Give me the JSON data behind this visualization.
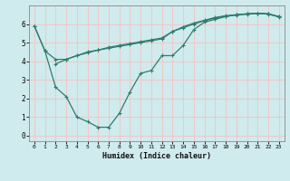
{
  "line1_x": [
    0,
    1,
    2,
    3,
    4,
    5,
    6,
    7,
    8,
    9,
    10,
    11,
    12,
    13,
    14,
    15,
    16,
    17,
    18,
    19,
    20,
    21,
    22,
    23
  ],
  "line1_y": [
    5.9,
    4.55,
    4.1,
    4.1,
    4.3,
    4.45,
    4.6,
    4.7,
    4.8,
    4.9,
    5.0,
    5.1,
    5.2,
    5.6,
    5.85,
    6.05,
    6.2,
    6.35,
    6.45,
    6.5,
    6.55,
    6.58,
    6.55,
    6.4
  ],
  "line2_x": [
    2,
    3,
    4,
    5,
    6,
    7,
    8,
    9,
    10,
    11,
    12,
    13,
    14,
    15,
    16,
    17,
    18,
    19,
    20,
    21,
    22,
    23
  ],
  "line2_y": [
    3.85,
    4.1,
    4.3,
    4.5,
    4.6,
    4.75,
    4.85,
    4.95,
    5.05,
    5.15,
    5.25,
    5.6,
    5.8,
    6.0,
    6.18,
    6.32,
    6.42,
    6.48,
    6.53,
    6.57,
    6.53,
    6.38
  ],
  "line3_x": [
    0,
    1,
    2,
    3,
    4,
    5,
    6,
    7,
    8,
    9,
    10,
    11,
    12,
    13,
    14,
    15,
    16,
    17,
    18,
    19,
    20,
    21,
    22,
    23
  ],
  "line3_y": [
    5.9,
    4.55,
    2.6,
    2.1,
    1.0,
    0.75,
    0.45,
    0.45,
    1.2,
    2.35,
    3.35,
    3.5,
    4.3,
    4.3,
    4.85,
    5.7,
    6.1,
    6.25,
    6.4,
    6.5,
    6.55,
    6.58,
    6.55,
    6.4
  ],
  "color": "#2E7D6E",
  "bg_color": "#D0EBEE",
  "grid_color": "#F0C8C8",
  "xlabel": "Humidex (Indice chaleur)",
  "xlim": [
    -0.5,
    23.5
  ],
  "ylim": [
    -0.3,
    7.0
  ],
  "yticks": [
    0,
    1,
    2,
    3,
    4,
    5,
    6
  ],
  "xticks": [
    0,
    1,
    2,
    3,
    4,
    5,
    6,
    7,
    8,
    9,
    10,
    11,
    12,
    13,
    14,
    15,
    16,
    17,
    18,
    19,
    20,
    21,
    22,
    23
  ],
  "marker": "+"
}
